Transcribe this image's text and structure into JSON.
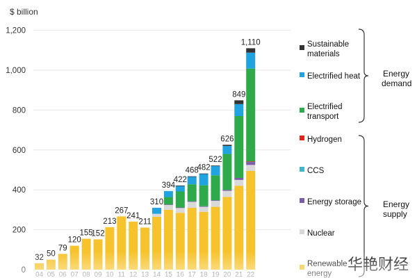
{
  "chart_data": {
    "type": "bar",
    "stacked": true,
    "unit_label": "$ billion",
    "ylim": [
      0,
      1200
    ],
    "yticks": [
      0,
      200,
      400,
      600,
      800,
      1000,
      1200
    ],
    "yticks_text": [
      "0",
      "200",
      "400",
      "600",
      "800",
      "1,000",
      "1,200"
    ],
    "categories": [
      "2004",
      "2005",
      "2006",
      "2007",
      "2008",
      "2009",
      "2010",
      "2011",
      "2012",
      "2013",
      "2014",
      "2015",
      "2016",
      "2017",
      "2018",
      "2019",
      "2020",
      "2021",
      "2022"
    ],
    "category_labels": [
      "04",
      "05",
      "06",
      "07",
      "08",
      "09",
      "10",
      "11",
      "12",
      "13",
      "14",
      "15",
      "16",
      "17",
      "18",
      "19",
      "20",
      "21",
      "22"
    ],
    "totals": [
      32,
      50,
      79,
      120,
      155,
      152,
      213,
      267,
      241,
      211,
      310,
      394,
      422,
      468,
      482,
      522,
      626,
      849,
      1110
    ],
    "total_labels": [
      "32",
      "50",
      "79",
      "120",
      "155",
      "152",
      "213",
      "267",
      "241",
      "211",
      "310",
      "394",
      "422",
      "468",
      "482",
      "522",
      "626",
      "849",
      "1,110"
    ],
    "series": [
      {
        "name": "Renewable energy",
        "group": "Energy supply",
        "color": "#f6c32c",
        "values": [
          32,
          50,
          79,
          120,
          155,
          152,
          213,
          267,
          241,
          211,
          265,
          300,
          285,
          310,
          290,
          315,
          365,
          420,
          495
        ]
      },
      {
        "name": "Nuclear",
        "group": "Energy supply",
        "color": "#d9d9d9",
        "values": [
          0,
          0,
          0,
          0,
          0,
          0,
          0,
          0,
          0,
          0,
          15,
          25,
          25,
          30,
          25,
          30,
          30,
          30,
          30
        ]
      },
      {
        "name": "Energy storage",
        "group": "Energy supply",
        "color": "#7b5ea7",
        "values": [
          0,
          0,
          0,
          0,
          0,
          0,
          0,
          0,
          0,
          0,
          0,
          2,
          2,
          3,
          3,
          3,
          5,
          10,
          15
        ]
      },
      {
        "name": "CCS",
        "group": "Energy supply",
        "color": "#3fb6c9",
        "values": [
          0,
          0,
          0,
          0,
          0,
          0,
          0,
          0,
          0,
          0,
          0,
          0,
          0,
          0,
          0,
          0,
          0,
          0,
          2
        ]
      },
      {
        "name": "Hydrogen",
        "group": "Energy supply",
        "color": "#e2231a",
        "values": [
          0,
          0,
          0,
          0,
          0,
          0,
          0,
          0,
          0,
          0,
          0,
          0,
          0,
          0,
          0,
          0,
          0,
          0,
          1
        ]
      },
      {
        "name": "Electrified transport",
        "group": "Energy demand",
        "color": "#2eaa4a",
        "values": [
          0,
          0,
          0,
          0,
          0,
          0,
          0,
          0,
          0,
          0,
          0,
          37,
          80,
          85,
          105,
          125,
          180,
          310,
          465
        ]
      },
      {
        "name": "Electrified heat",
        "group": "Energy demand",
        "color": "#21a3e0",
        "values": [
          0,
          0,
          0,
          0,
          0,
          0,
          0,
          0,
          0,
          0,
          30,
          30,
          28,
          38,
          57,
          46,
          40,
          60,
          80
        ]
      },
      {
        "name": "Sustainable materials",
        "group": "Energy demand",
        "color": "#333333",
        "values": [
          0,
          0,
          0,
          0,
          0,
          0,
          0,
          0,
          0,
          0,
          0,
          0,
          2,
          2,
          2,
          3,
          6,
          19,
          22
        ]
      }
    ],
    "legend": {
      "demand_group_label": [
        "Energy",
        "demand"
      ],
      "supply_group_label": [
        "Energy",
        "supply"
      ],
      "items": [
        {
          "key": "sustainable",
          "lines": [
            "Sustainable",
            "materials"
          ],
          "color": "#333333"
        },
        {
          "key": "heat",
          "lines": [
            "Electrified heat"
          ],
          "color": "#21a3e0"
        },
        {
          "key": "transport",
          "lines": [
            "Electrified",
            "transport"
          ],
          "color": "#2eaa4a"
        },
        {
          "key": "hydrogen",
          "lines": [
            "Hydrogen"
          ],
          "color": "#e2231a"
        },
        {
          "key": "ccs",
          "lines": [
            "CCS"
          ],
          "color": "#3fb6c9"
        },
        {
          "key": "storage",
          "lines": [
            "Energy storage"
          ],
          "color": "#7b5ea7"
        },
        {
          "key": "nuclear",
          "lines": [
            "Nuclear"
          ],
          "color": "#d9d9d9"
        },
        {
          "key": "renewable",
          "lines": [
            "Renewable",
            "energy"
          ],
          "color": "#f6c32c"
        }
      ]
    }
  },
  "watermark": "华艳财经"
}
